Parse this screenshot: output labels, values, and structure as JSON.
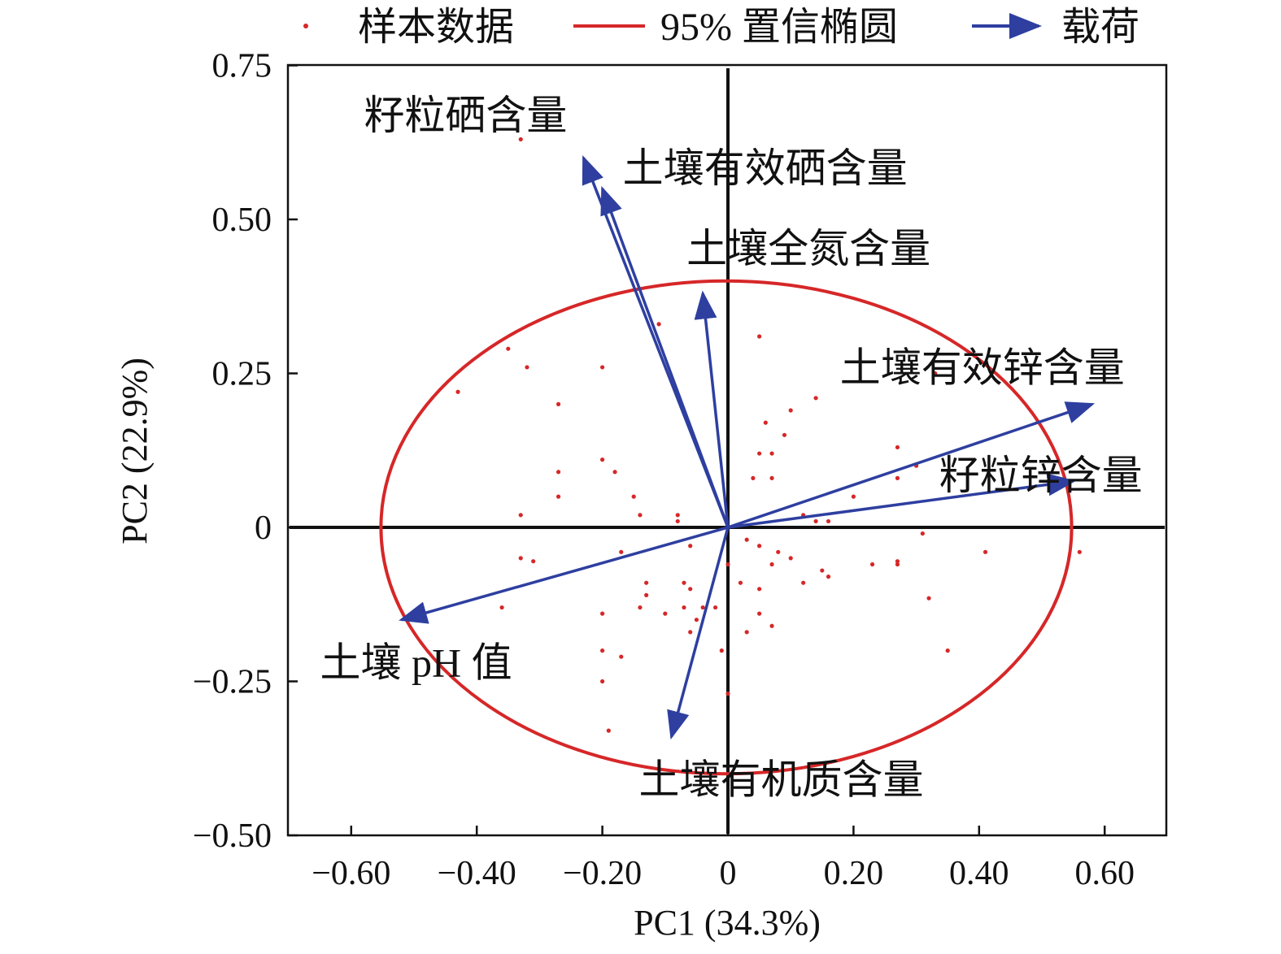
{
  "chart_data": {
    "type": "scatter",
    "title": "",
    "xlabel": "PC1 (34.3%)",
    "ylabel": "PC2 (22.9%)",
    "xlim": [
      -0.7,
      0.7
    ],
    "ylim": [
      -0.5,
      0.75
    ],
    "x_ticks": [
      {
        "value": -0.6,
        "label": "−0.60"
      },
      {
        "value": -0.4,
        "label": "−0.40"
      },
      {
        "value": -0.2,
        "label": "−0.20"
      },
      {
        "value": 0,
        "label": "0"
      },
      {
        "value": 0.2,
        "label": "0.20"
      },
      {
        "value": 0.4,
        "label": "0.40"
      },
      {
        "value": 0.6,
        "label": "0.60"
      }
    ],
    "y_ticks": [
      {
        "value": -0.5,
        "label": "−0.50"
      },
      {
        "value": -0.25,
        "label": "−0.25"
      },
      {
        "value": 0,
        "label": "0"
      },
      {
        "value": 0.25,
        "label": "0.25"
      },
      {
        "value": 0.5,
        "label": "0.50"
      },
      {
        "value": 0.75,
        "label": "0.75"
      }
    ],
    "grid": false,
    "zero_lines": true,
    "legend": {
      "position": "top",
      "entries": [
        {
          "label": "样本数据",
          "kind": "point",
          "color": "#d62728"
        },
        {
          "label": "95% 置信椭圆",
          "kind": "line",
          "color": "#d62728"
        },
        {
          "label": "载荷",
          "kind": "arrow",
          "color": "#2e3fa0"
        }
      ]
    },
    "ellipse": {
      "label": "95% 置信椭圆",
      "center": [
        0.0,
        0.0
      ],
      "rx": 0.55,
      "ry": 0.4,
      "color": "#d62728"
    },
    "loadings": [
      {
        "label": "籽粒硒含量",
        "x": -0.23,
        "y": 0.6
      },
      {
        "label": "土壤有效硒含量",
        "x": -0.2,
        "y": 0.55
      },
      {
        "label": "土壤全氮含量",
        "x": -0.04,
        "y": 0.38
      },
      {
        "label": "土壤有效锌含量",
        "x": 0.58,
        "y": 0.2
      },
      {
        "label": "籽粒锌含量",
        "x": 0.55,
        "y": 0.075
      },
      {
        "label": "土壤 pH 值",
        "x": -0.52,
        "y": -0.15
      },
      {
        "label": "土壤有机质含量",
        "x": -0.09,
        "y": -0.34
      }
    ],
    "loading_color": "#2e3fa0",
    "series": [
      {
        "name": "样本数据",
        "color": "#d62728",
        "points": [
          [
            -0.33,
            0.63
          ],
          [
            -0.43,
            0.22
          ],
          [
            -0.35,
            0.29
          ],
          [
            -0.32,
            0.26
          ],
          [
            -0.27,
            0.2
          ],
          [
            -0.2,
            0.26
          ],
          [
            -0.11,
            0.33
          ],
          [
            0.05,
            0.31
          ],
          [
            0.14,
            0.21
          ],
          [
            0.1,
            0.19
          ],
          [
            0.06,
            0.17
          ],
          [
            0.09,
            0.15
          ],
          [
            0.05,
            0.12
          ],
          [
            0.07,
            0.12
          ],
          [
            0.04,
            0.08
          ],
          [
            0.07,
            0.08
          ],
          [
            0.33,
            0.25
          ],
          [
            0.27,
            0.13
          ],
          [
            0.3,
            0.1
          ],
          [
            0.2,
            0.05
          ],
          [
            0.27,
            0.08
          ],
          [
            0.12,
            0.02
          ],
          [
            0.14,
            0.01
          ],
          [
            0.16,
            0.01
          ],
          [
            0.31,
            -0.01
          ],
          [
            -0.27,
            0.09
          ],
          [
            -0.2,
            0.11
          ],
          [
            -0.18,
            0.09
          ],
          [
            -0.27,
            0.05
          ],
          [
            -0.15,
            0.05
          ],
          [
            -0.33,
            0.02
          ],
          [
            -0.14,
            0.02
          ],
          [
            -0.08,
            0.02
          ],
          [
            -0.08,
            0.01
          ],
          [
            -0.33,
            -0.05
          ],
          [
            -0.31,
            -0.055
          ],
          [
            -0.17,
            -0.04
          ],
          [
            -0.06,
            -0.03
          ],
          [
            0.03,
            -0.02
          ],
          [
            0.05,
            -0.03
          ],
          [
            0.08,
            -0.04
          ],
          [
            0.1,
            -0.05
          ],
          [
            0.07,
            -0.06
          ],
          [
            0.0,
            -0.06
          ],
          [
            0.15,
            -0.07
          ],
          [
            0.16,
            -0.08
          ],
          [
            0.12,
            -0.09
          ],
          [
            0.23,
            -0.06
          ],
          [
            0.27,
            -0.06
          ],
          [
            0.27,
            -0.055
          ],
          [
            0.41,
            -0.04
          ],
          [
            0.56,
            -0.04
          ],
          [
            0.02,
            -0.09
          ],
          [
            0.05,
            -0.1
          ],
          [
            -0.13,
            -0.09
          ],
          [
            -0.07,
            -0.09
          ],
          [
            -0.06,
            -0.1
          ],
          [
            -0.13,
            -0.11
          ],
          [
            -0.14,
            -0.13
          ],
          [
            -0.07,
            -0.13
          ],
          [
            -0.04,
            -0.13
          ],
          [
            -0.02,
            -0.13
          ],
          [
            -0.36,
            -0.13
          ],
          [
            -0.2,
            -0.14
          ],
          [
            -0.1,
            -0.14
          ],
          [
            -0.05,
            -0.15
          ],
          [
            0.05,
            -0.14
          ],
          [
            0.07,
            -0.16
          ],
          [
            0.03,
            -0.17
          ],
          [
            -0.06,
            -0.17
          ],
          [
            -0.2,
            -0.2
          ],
          [
            -0.17,
            -0.21
          ],
          [
            -0.01,
            -0.2
          ],
          [
            0.32,
            -0.115
          ],
          [
            0.35,
            -0.2
          ],
          [
            -0.2,
            -0.25
          ],
          [
            0.0,
            -0.27
          ],
          [
            -0.19,
            -0.33
          ]
        ]
      }
    ]
  }
}
